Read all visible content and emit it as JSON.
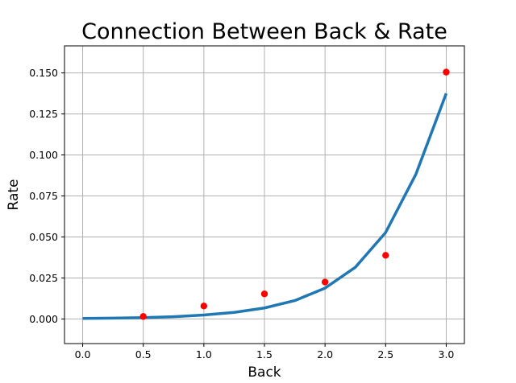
{
  "chart_data": {
    "type": "scatter",
    "title": "Connection Between Back & Rate",
    "xlabel": "Back",
    "ylabel": "Rate",
    "xlim": [
      -0.15,
      3.15
    ],
    "ylim": [
      -0.015,
      0.1665
    ],
    "xticks": [
      "0.0",
      "0.5",
      "1.0",
      "1.5",
      "2.0",
      "2.5",
      "3.0"
    ],
    "yticks": [
      "0.000",
      "0.025",
      "0.050",
      "0.075",
      "0.100",
      "0.125",
      "0.150"
    ],
    "grid": true,
    "series": [
      {
        "type": "scatter",
        "color": "#ff0000",
        "x": [
          0.5,
          1.0,
          1.5,
          2.0,
          2.5,
          3.0
        ],
        "y": [
          0.0015,
          0.0079,
          0.0153,
          0.0225,
          0.0388,
          0.1505
        ]
      },
      {
        "type": "line",
        "color": "#1f77b4",
        "x": [
          0.0,
          0.25,
          0.5,
          0.75,
          1.0,
          1.25,
          1.5,
          1.75,
          2.0,
          2.25,
          2.5,
          2.75,
          3.0
        ],
        "y": [
          0.0003,
          0.0005,
          0.0008,
          0.0014,
          0.0024,
          0.004,
          0.0067,
          0.0112,
          0.0188,
          0.0315,
          0.0527,
          0.0883,
          0.1375
        ]
      }
    ]
  }
}
